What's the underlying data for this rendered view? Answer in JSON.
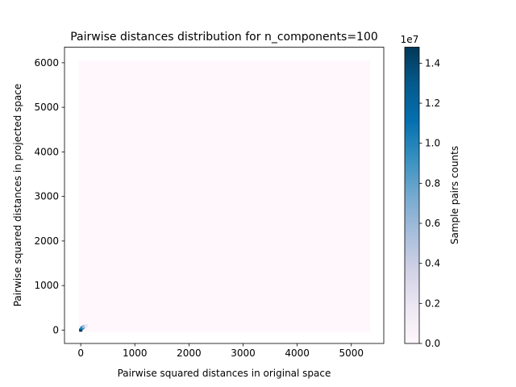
{
  "chart_data": {
    "type": "heatmap",
    "title": "Pairwise distances distribution for n_components=100",
    "xlabel": "Pairwise squared distances in original space",
    "ylabel": "Pairwise squared distances in projected space",
    "xlim": [
      -300,
      5600
    ],
    "ylim": [
      -300,
      6350
    ],
    "xticks": [
      0,
      1000,
      2000,
      3000,
      4000,
      5000
    ],
    "yticks": [
      0,
      1000,
      2000,
      3000,
      4000,
      5000,
      6000
    ],
    "background_region": {
      "x": [
        -40,
        5350
      ],
      "y": [
        -40,
        6050
      ],
      "value": 0
    },
    "dense_cells": [
      {
        "x": 0,
        "y": 0,
        "value": 14800000
      },
      {
        "x": 20,
        "y": 40,
        "value": 12000000
      },
      {
        "x": 40,
        "y": 60,
        "value": 9000000
      },
      {
        "x": 60,
        "y": 80,
        "value": 5000000
      },
      {
        "x": 100,
        "y": 100,
        "value": 1500000
      }
    ],
    "grid": false,
    "colorbar": {
      "label": "Sample pairs counts",
      "colormap": "PuBu",
      "range": [
        0,
        1.48
      ],
      "ticks": [
        0.0,
        0.2,
        0.4,
        0.6,
        0.8,
        1.0,
        1.2,
        1.4
      ],
      "tick_labels": [
        "0.0",
        "0.2",
        "0.4",
        "0.6",
        "0.8",
        "1.0",
        "1.2",
        "1.4"
      ],
      "offset_text": "1e7"
    }
  }
}
